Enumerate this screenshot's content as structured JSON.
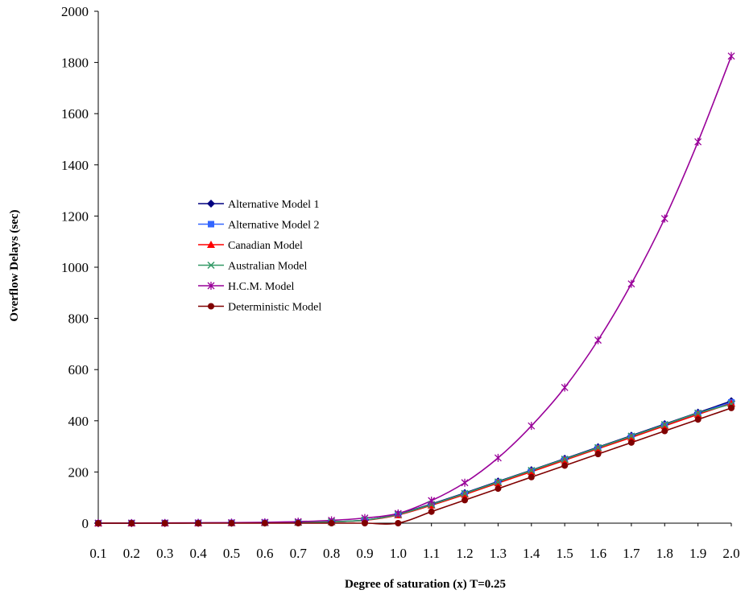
{
  "chart_data": {
    "type": "line",
    "title": "",
    "xlabel": "Degree of saturation (x)   T=0.25",
    "ylabel": "Overflow Delays (sec)",
    "x": [
      "0.1",
      "0.2",
      "0.3",
      "0.4",
      "0.5",
      "0.6",
      "0.7",
      "0.8",
      "0.9",
      "1.0",
      "1.1",
      "1.2",
      "1.3",
      "1.4",
      "1.5",
      "1.6",
      "1.7",
      "1.8",
      "1.9",
      "2.0"
    ],
    "ylim": [
      0,
      2000
    ],
    "yticks": [
      "0",
      "200",
      "400",
      "600",
      "800",
      "1000",
      "1200",
      "1400",
      "1600",
      "1800",
      "2000"
    ],
    "grid": false,
    "legend_position": "center-left",
    "series": [
      {
        "name": "Alternative Model 1",
        "color": "#000080",
        "marker": "diamond",
        "values": [
          0.1,
          0.3,
          0.5,
          0.8,
          1.2,
          1.8,
          3,
          5.5,
          12,
          35,
          75,
          118,
          163,
          207,
          252,
          297,
          342,
          387,
          432,
          477
        ]
      },
      {
        "name": "Alternative Model 2",
        "color": "#3366FF",
        "marker": "square",
        "values": [
          0.1,
          0.3,
          0.5,
          0.8,
          1.2,
          1.8,
          3,
          5.3,
          11.5,
          33,
          72,
          115,
          160,
          204,
          249,
          294,
          339,
          384,
          429,
          472
        ]
      },
      {
        "name": "Canadian Model",
        "color": "#FF0000",
        "marker": "triangle",
        "values": [
          0.1,
          0.3,
          0.5,
          0.8,
          1.2,
          1.8,
          2.9,
          5.2,
          11,
          32,
          70,
          112,
          157,
          201,
          246,
          291,
          335,
          380,
          425,
          468
        ]
      },
      {
        "name": "Australian Model",
        "color": "#339966",
        "marker": "x",
        "values": [
          0.1,
          0.3,
          0.5,
          0.8,
          1.2,
          1.8,
          3,
          5.4,
          12,
          34,
          73,
          116,
          161,
          206,
          250,
          295,
          340,
          385,
          430,
          465
        ]
      },
      {
        "name": "H.C.M. Model",
        "color": "#990099",
        "marker": "star",
        "values": [
          0.2,
          0.5,
          0.9,
          1.4,
          2.2,
          3.5,
          6,
          11,
          20,
          38,
          88,
          158,
          255,
          380,
          530,
          715,
          935,
          1190,
          1490,
          1825
        ]
      },
      {
        "name": "Deterministic Model",
        "color": "#800000",
        "marker": "circle",
        "values": [
          0,
          0,
          0,
          0,
          0,
          0,
          0,
          0,
          0,
          0,
          45,
          90,
          135,
          180,
          225,
          270,
          315,
          360,
          405,
          450
        ]
      }
    ]
  }
}
